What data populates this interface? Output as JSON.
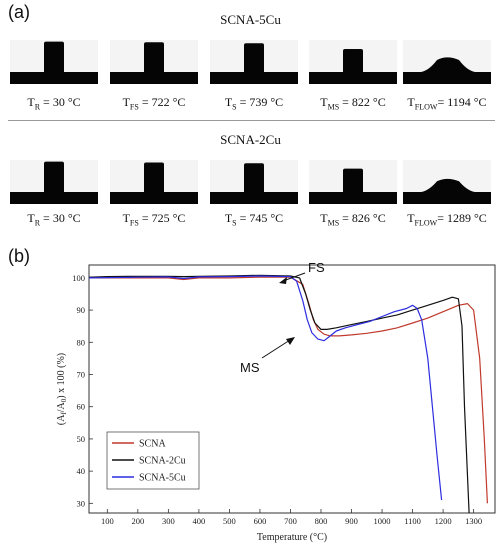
{
  "panel_a": {
    "label": "(a)",
    "rows": [
      {
        "title": "SCNA-5Cu",
        "samples": [
          {
            "sym": "T",
            "sub": "R",
            "text": " = 30 °C",
            "shape": "column",
            "col_h": 0.95
          },
          {
            "sym": "T",
            "sub": "FS",
            "text": " = 722 °C",
            "shape": "column",
            "col_h": 0.93
          },
          {
            "sym": "T",
            "sub": "S",
            "text": " = 739 °C",
            "shape": "column",
            "col_h": 0.9
          },
          {
            "sym": "T",
            "sub": "MS",
            "text": " = 822 °C",
            "shape": "column",
            "col_h": 0.72
          },
          {
            "sym": "T",
            "sub": "FLOW",
            "text": "= 1194 °C",
            "shape": "dome",
            "col_h": 0.5
          }
        ]
      },
      {
        "title": "SCNA-2Cu",
        "samples": [
          {
            "sym": "T",
            "sub": "R",
            "text": " = 30 °C",
            "shape": "column",
            "col_h": 0.95
          },
          {
            "sym": "T",
            "sub": "FS",
            "text": " = 725 °C",
            "shape": "column",
            "col_h": 0.92
          },
          {
            "sym": "T",
            "sub": "S",
            "text": " = 745 °C",
            "shape": "column",
            "col_h": 0.9
          },
          {
            "sym": "T",
            "sub": "MS",
            "text": " = 826 °C",
            "shape": "column",
            "col_h": 0.73
          },
          {
            "sym": "T",
            "sub": "FLOW",
            "text": "= 1289 °C",
            "shape": "dome",
            "col_h": 0.45
          }
        ]
      }
    ]
  },
  "panel_b": {
    "label": "(b)",
    "annotations": {
      "fs": "FS",
      "ms": "MS"
    }
  },
  "chart_data": {
    "type": "line",
    "xlabel": "Temperature (°C)",
    "ylabel": "(A_f/A_0) x 100 (%)",
    "ylabel_parts": {
      "open": "(A",
      "sub1": "f",
      "slash": "/A",
      "sub2": "0",
      "rest": ") x 100 (%)"
    },
    "xlim": [
      40,
      1370
    ],
    "ylim": [
      27,
      104
    ],
    "xticks": [
      100,
      200,
      300,
      400,
      500,
      600,
      700,
      800,
      900,
      1000,
      1100,
      1200,
      1300
    ],
    "yticks": [
      30,
      40,
      50,
      60,
      70,
      80,
      90,
      100
    ],
    "grid": false,
    "legend_position": "bottom-left",
    "series": [
      {
        "name": "SCNA",
        "color": "#c0392b",
        "x": [
          40,
          100,
          200,
          300,
          350,
          400,
          500,
          600,
          700,
          740,
          760,
          775,
          790,
          810,
          830,
          860,
          900,
          950,
          1000,
          1050,
          1100,
          1150,
          1200,
          1250,
          1280,
          1300,
          1320,
          1335,
          1345
        ],
        "y": [
          100,
          100,
          100,
          100,
          99.5,
          100,
          100,
          100.2,
          100.2,
          98,
          92,
          87,
          84,
          82.5,
          82,
          82,
          82.3,
          82.8,
          83.5,
          84.5,
          86,
          87.5,
          89.5,
          91.5,
          92,
          90,
          75,
          50,
          30
        ]
      },
      {
        "name": "SCNA-2Cu",
        "color": "#111111",
        "x": [
          40,
          100,
          200,
          300,
          350,
          400,
          500,
          600,
          700,
          730,
          750,
          765,
          780,
          800,
          820,
          850,
          900,
          950,
          1000,
          1050,
          1100,
          1150,
          1200,
          1230,
          1250,
          1262,
          1270,
          1285
        ],
        "y": [
          100.2,
          100.4,
          100.5,
          100.5,
          100.4,
          100.5,
          100.6,
          100.8,
          100.6,
          100,
          95,
          90,
          86,
          84,
          84,
          84.5,
          85.5,
          86.5,
          87.5,
          88.5,
          90,
          91.5,
          93,
          94,
          93.5,
          85,
          60,
          27
        ]
      },
      {
        "name": "SCNA-5Cu",
        "color": "#2c2ce0",
        "x": [
          40,
          100,
          200,
          300,
          350,
          400,
          500,
          600,
          700,
          720,
          740,
          755,
          770,
          790,
          810,
          830,
          850,
          880,
          920,
          960,
          1000,
          1040,
          1080,
          1100,
          1115,
          1130,
          1150,
          1165,
          1180,
          1195
        ],
        "y": [
          100,
          100.1,
          100.2,
          100.3,
          99.8,
          100.3,
          100.4,
          100.6,
          100.4,
          99,
          93,
          87,
          83,
          81,
          80.5,
          82,
          83.5,
          84.5,
          85.5,
          86.5,
          88,
          89.5,
          90.5,
          91.5,
          90.5,
          87,
          75,
          60,
          45,
          31
        ]
      }
    ]
  }
}
